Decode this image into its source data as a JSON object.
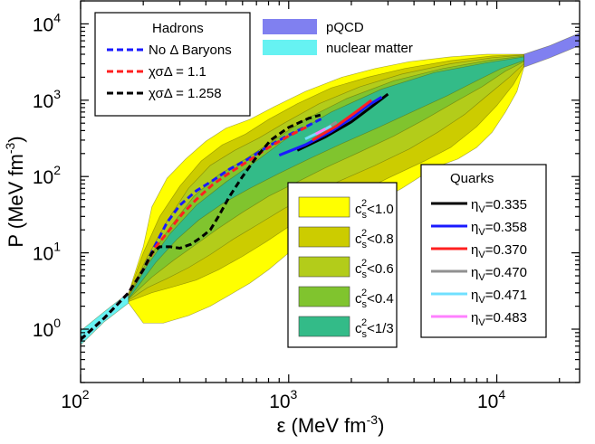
{
  "chart_data": {
    "type": "line",
    "xlabel": "ε (MeV fm",
    "xlabel_exp": "-3",
    "xlabel_close": ")",
    "ylabel": "P (MeV fm",
    "ylabel_exp": "-3",
    "ylabel_close": ")",
    "x_scale": "log",
    "y_scale": "log",
    "xlim": [
      100,
      25000
    ],
    "ylim": [
      0.2,
      20000
    ],
    "x_ticks": [
      {
        "value": 100,
        "base": "10",
        "exp": "2"
      },
      {
        "value": 1000,
        "base": "10",
        "exp": "3"
      },
      {
        "value": 10000,
        "base": "10",
        "exp": "4"
      }
    ],
    "y_ticks": [
      {
        "value": 1,
        "base": "10",
        "exp": "0"
      },
      {
        "value": 10,
        "base": "10",
        "exp": "1"
      },
      {
        "value": 100,
        "base": "10",
        "exp": "2"
      },
      {
        "value": 1000,
        "base": "10",
        "exp": "3"
      },
      {
        "value": 10000,
        "base": "10",
        "exp": "4"
      }
    ],
    "bands": [
      {
        "name": "nuclear matter",
        "color": "#66f2f2",
        "upper": [
          [
            100,
            0.95
          ],
          [
            130,
            1.7
          ],
          [
            170,
            3.0
          ]
        ],
        "lower": [
          [
            170,
            2.2
          ],
          [
            130,
            1.25
          ],
          [
            100,
            0.62
          ]
        ]
      },
      {
        "name": "pQCD",
        "color": "#8080f0",
        "upper": [
          [
            13500,
            4000
          ],
          [
            18000,
            5200
          ],
          [
            25000,
            7600
          ]
        ],
        "lower": [
          [
            25000,
            5200
          ],
          [
            18000,
            3600
          ],
          [
            13500,
            2700
          ]
        ]
      },
      {
        "name": "cs2<1.0",
        "color": "#ffff00",
        "upper": [
          [
            170,
            3.0
          ],
          [
            200,
            12
          ],
          [
            220,
            40
          ],
          [
            260,
            95
          ],
          [
            320,
            170
          ],
          [
            400,
            290
          ],
          [
            500,
            430
          ],
          [
            650,
            560
          ],
          [
            850,
            820
          ],
          [
            1200,
            1300
          ],
          [
            1800,
            2000
          ],
          [
            2600,
            2600
          ],
          [
            3800,
            3200
          ],
          [
            6000,
            3700
          ],
          [
            9000,
            4000
          ],
          [
            13500,
            4000
          ]
        ],
        "lower": [
          [
            13500,
            2700
          ],
          [
            12500,
            1300
          ],
          [
            11000,
            700
          ],
          [
            9500,
            380
          ],
          [
            8000,
            240
          ],
          [
            6500,
            170
          ],
          [
            5000,
            130
          ],
          [
            3500,
            70
          ],
          [
            2500,
            42
          ],
          [
            1800,
            27
          ],
          [
            1300,
            17
          ],
          [
            1000,
            10
          ],
          [
            800,
            6
          ],
          [
            650,
            4
          ],
          [
            520,
            2.8
          ],
          [
            420,
            2.0
          ],
          [
            330,
            1.5
          ],
          [
            250,
            1.2
          ],
          [
            200,
            1.2
          ],
          [
            170,
            2.2
          ]
        ]
      },
      {
        "name": "cs2<0.8",
        "color": "#cccc00",
        "upper": [
          [
            170,
            2.9
          ],
          [
            200,
            10
          ],
          [
            240,
            30
          ],
          [
            300,
            75
          ],
          [
            380,
            160
          ],
          [
            480,
            260
          ],
          [
            620,
            360
          ],
          [
            800,
            560
          ],
          [
            1100,
            900
          ],
          [
            1600,
            1450
          ],
          [
            2400,
            2000
          ],
          [
            3600,
            2600
          ],
          [
            6000,
            3300
          ],
          [
            9500,
            3800
          ],
          [
            13500,
            3950
          ]
        ],
        "lower": [
          [
            13500,
            2800
          ],
          [
            12000,
            1600
          ],
          [
            10000,
            850
          ],
          [
            8000,
            450
          ],
          [
            6000,
            240
          ],
          [
            4500,
            160
          ],
          [
            3000,
            95
          ],
          [
            2000,
            55
          ],
          [
            1400,
            35
          ],
          [
            1000,
            22
          ],
          [
            780,
            14
          ],
          [
            600,
            9
          ],
          [
            460,
            6
          ],
          [
            360,
            4.4
          ],
          [
            280,
            3.6
          ],
          [
            220,
            3.0
          ],
          [
            170,
            2.3
          ]
        ]
      },
      {
        "name": "cs2<0.6",
        "color": "#b3cc1a",
        "upper": [
          [
            170,
            2.8
          ],
          [
            210,
            9
          ],
          [
            260,
            26
          ],
          [
            330,
            70
          ],
          [
            420,
            140
          ],
          [
            550,
            220
          ],
          [
            720,
            320
          ],
          [
            950,
            500
          ],
          [
            1400,
            900
          ],
          [
            2200,
            1500
          ],
          [
            3500,
            2200
          ],
          [
            6000,
            3000
          ],
          [
            9500,
            3600
          ],
          [
            13500,
            3900
          ]
        ],
        "lower": [
          [
            13500,
            3000
          ],
          [
            11500,
            2000
          ],
          [
            9000,
            1150
          ],
          [
            7000,
            650
          ],
          [
            5200,
            380
          ],
          [
            3800,
            230
          ],
          [
            2600,
            140
          ],
          [
            1800,
            90
          ],
          [
            1300,
            60
          ],
          [
            950,
            38
          ],
          [
            720,
            24
          ],
          [
            540,
            15
          ],
          [
            420,
            9.5
          ],
          [
            330,
            6.4
          ],
          [
            260,
            4.6
          ],
          [
            210,
            3.5
          ],
          [
            170,
            2.4
          ]
        ]
      },
      {
        "name": "cs2<0.4",
        "color": "#80c42e",
        "upper": [
          [
            170,
            2.7
          ],
          [
            210,
            8
          ],
          [
            270,
            22
          ],
          [
            350,
            55
          ],
          [
            460,
            105
          ],
          [
            620,
            170
          ],
          [
            850,
            300
          ],
          [
            1200,
            560
          ],
          [
            1900,
            1050
          ],
          [
            3200,
            1800
          ],
          [
            5500,
            2600
          ],
          [
            9000,
            3300
          ],
          [
            13500,
            3800
          ]
        ],
        "lower": [
          [
            13500,
            3200
          ],
          [
            11000,
            2400
          ],
          [
            8500,
            1500
          ],
          [
            6300,
            950
          ],
          [
            4500,
            560
          ],
          [
            3200,
            340
          ],
          [
            2200,
            210
          ],
          [
            1500,
            130
          ],
          [
            1100,
            85
          ],
          [
            800,
            55
          ],
          [
            600,
            34
          ],
          [
            460,
            21
          ],
          [
            360,
            13
          ],
          [
            280,
            8
          ],
          [
            220,
            4.8
          ],
          [
            170,
            2.5
          ]
        ]
      },
      {
        "name": "cs2<1/3",
        "color": "#33bb88",
        "upper": [
          [
            170,
            2.6
          ],
          [
            210,
            7
          ],
          [
            270,
            18
          ],
          [
            360,
            42
          ],
          [
            500,
            85
          ],
          [
            700,
            160
          ],
          [
            1000,
            330
          ],
          [
            1600,
            700
          ],
          [
            2800,
            1400
          ],
          [
            5000,
            2300
          ],
          [
            9000,
            3100
          ],
          [
            13500,
            3700
          ]
        ],
        "lower": [
          [
            13500,
            3300
          ],
          [
            10500,
            2600
          ],
          [
            8000,
            1800
          ],
          [
            5800,
            1150
          ],
          [
            4000,
            720
          ],
          [
            2700,
            440
          ],
          [
            1800,
            270
          ],
          [
            1250,
            170
          ],
          [
            900,
            110
          ],
          [
            650,
            70
          ],
          [
            480,
            44
          ],
          [
            370,
            27
          ],
          [
            290,
            15
          ],
          [
            230,
            7.5
          ],
          [
            170,
            2.5
          ]
        ]
      }
    ],
    "series": [
      {
        "name": "No Δ Baryons",
        "color": "#1a1aff",
        "dash": "7,4",
        "width": 3,
        "points": [
          [
            100,
            0.73
          ],
          [
            130,
            1.4
          ],
          [
            170,
            3
          ],
          [
            200,
            6
          ],
          [
            230,
            13
          ],
          [
            260,
            25
          ],
          [
            300,
            42
          ],
          [
            360,
            65
          ],
          [
            430,
            88
          ],
          [
            520,
            125
          ],
          [
            640,
            170
          ],
          [
            800,
            250
          ],
          [
            1000,
            350
          ],
          [
            1250,
            470
          ],
          [
            1450,
            580
          ]
        ]
      },
      {
        "name": "χσΔ = 1.1",
        "color": "#ff2020",
        "dash": "7,4",
        "width": 3,
        "points": [
          [
            100,
            0.73
          ],
          [
            130,
            1.4
          ],
          [
            170,
            3
          ],
          [
            200,
            6
          ],
          [
            230,
            12
          ],
          [
            255,
            17
          ],
          [
            275,
            22
          ],
          [
            310,
            33
          ],
          [
            360,
            50
          ],
          [
            430,
            78
          ],
          [
            520,
            112
          ],
          [
            640,
            160
          ],
          [
            800,
            240
          ],
          [
            1000,
            340
          ],
          [
            1250,
            460
          ]
        ]
      },
      {
        "name": "χσΔ = 1.258",
        "color": "#000000",
        "dash": "7,4",
        "width": 3,
        "points": [
          [
            100,
            0.73
          ],
          [
            130,
            1.4
          ],
          [
            170,
            3
          ],
          [
            200,
            6
          ],
          [
            220,
            10
          ],
          [
            240,
            12
          ],
          [
            270,
            12
          ],
          [
            300,
            11.5
          ],
          [
            340,
            13
          ],
          [
            380,
            16
          ],
          [
            420,
            20
          ],
          [
            460,
            30
          ],
          [
            520,
            55
          ],
          [
            600,
            100
          ],
          [
            700,
            180
          ],
          [
            820,
            300
          ],
          [
            1000,
            440
          ],
          [
            1250,
            580
          ],
          [
            1420,
            640
          ]
        ]
      },
      {
        "name": "ηV=0.335",
        "color": "#000000",
        "dash": "",
        "width": 3,
        "points": [
          [
            1100,
            220
          ],
          [
            1500,
            330
          ],
          [
            2000,
            520
          ],
          [
            2500,
            820
          ],
          [
            3000,
            1200
          ]
        ]
      },
      {
        "name": "ηV=0.358",
        "color": "#1a1aff",
        "dash": "",
        "width": 3,
        "points": [
          [
            900,
            190
          ],
          [
            1200,
            260
          ],
          [
            1600,
            390
          ],
          [
            2000,
            580
          ],
          [
            2400,
            850
          ],
          [
            2800,
            1100
          ]
        ]
      },
      {
        "name": "ηV=0.370",
        "color": "#ff2020",
        "dash": "",
        "width": 3,
        "points": [
          [
            1300,
            300
          ],
          [
            1700,
            460
          ],
          [
            2100,
            700
          ],
          [
            2500,
            1000
          ]
        ]
      },
      {
        "name": "ηV=0.470",
        "color": "#909090",
        "dash": "",
        "width": 3,
        "points": [
          [
            1250,
            330
          ],
          [
            1500,
            420
          ],
          [
            1700,
            520
          ]
        ]
      },
      {
        "name": "ηV=0.471",
        "color": "#70e0ff",
        "dash": "",
        "width": 3,
        "points": [
          [
            1200,
            310
          ],
          [
            1400,
            380
          ],
          [
            1600,
            460
          ]
        ]
      },
      {
        "name": "ηV=0.483",
        "color": "#ff80ff",
        "dash": "",
        "width": 3,
        "points": [
          [
            1350,
            360
          ],
          [
            1500,
            420
          ]
        ]
      }
    ]
  },
  "legend_hadrons": {
    "title": "Hadrons",
    "items": [
      {
        "label": "No Δ Baryons",
        "color": "#1a1aff",
        "dash": "7,4"
      },
      {
        "label": "χσΔ = 1.1",
        "color": "#ff2020",
        "dash": "7,4"
      },
      {
        "label": "χσΔ = 1.258",
        "color": "#000000",
        "dash": "7,4"
      }
    ]
  },
  "legend_regions": {
    "items": [
      {
        "label": "pQCD",
        "color": "#8080f0"
      },
      {
        "label": "nuclear matter",
        "color": "#66f2f2"
      }
    ]
  },
  "legend_cs": {
    "items": [
      {
        "label": "c",
        "sub": "s",
        "sup": "2",
        "rest": "<1.0",
        "color": "#ffff00"
      },
      {
        "label": "c",
        "sub": "s",
        "sup": "2",
        "rest": "<0.8",
        "color": "#cccc00"
      },
      {
        "label": "c",
        "sub": "s",
        "sup": "2",
        "rest": "<0.6",
        "color": "#b3cc1a"
      },
      {
        "label": "c",
        "sub": "s",
        "sup": "2",
        "rest": "<0.4",
        "color": "#80c42e"
      },
      {
        "label": "c",
        "sub": "s",
        "sup": "2",
        "rest": "<1/3",
        "color": "#33bb88"
      }
    ]
  },
  "legend_quarks": {
    "title": "Quarks",
    "items": [
      {
        "label": "η",
        "sub": "V",
        "rest": "=0.335",
        "color": "#000000"
      },
      {
        "label": "η",
        "sub": "V",
        "rest": "=0.358",
        "color": "#1a1aff"
      },
      {
        "label": "η",
        "sub": "V",
        "rest": "=0.370",
        "color": "#ff2020"
      },
      {
        "label": "η",
        "sub": "V",
        "rest": "=0.470",
        "color": "#909090"
      },
      {
        "label": "η",
        "sub": "V",
        "rest": "=0.471",
        "color": "#70e0ff"
      },
      {
        "label": "η",
        "sub": "V",
        "rest": "=0.483",
        "color": "#ff80ff"
      }
    ]
  }
}
